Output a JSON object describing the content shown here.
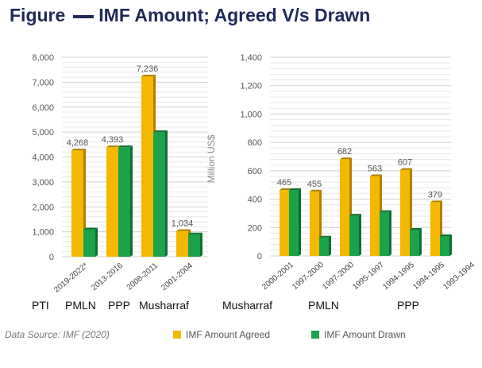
{
  "title": {
    "prefix": "Figure",
    "text": "IMF Amount; Agreed V/s Drawn"
  },
  "colors": {
    "agreed": "#f5b800",
    "drawn": "#1aa34a",
    "title": "#1f2a5a"
  },
  "chart_data": [
    {
      "type": "bar",
      "ylabel": "Million US$",
      "ylim": [
        0,
        8000
      ],
      "yticks": [
        "0",
        "1,000",
        "2,000",
        "3,000",
        "4,000",
        "5,000",
        "6,000",
        "7,000",
        "8,000"
      ],
      "grid": true,
      "categories": [
        "2019-2022*",
        "2013-2016",
        "2008-2011",
        "2001-2004"
      ],
      "series": [
        {
          "name": "IMF Amount Agreed",
          "values": [
            4268,
            4393,
            7236,
            1034
          ],
          "labels": [
            "4,268",
            "4,393",
            "7,236",
            "1,034"
          ]
        },
        {
          "name": "IMF Amount Drawn",
          "values": [
            1100,
            4393,
            5000,
            900
          ]
        }
      ]
    },
    {
      "type": "bar",
      "ylim": [
        0,
        1400
      ],
      "yticks": [
        "0",
        "200",
        "400",
        "600",
        "800",
        "1,000",
        "1,200",
        "1,400"
      ],
      "grid": true,
      "categories": [
        "2000-2001",
        "1997-2000",
        "1997-2000",
        "1995-1997",
        "1994-1995",
        "1994-1995",
        "1993-1994"
      ],
      "series": [
        {
          "name": "IMF Amount Agreed",
          "values": [
            465,
            455,
            682,
            563,
            607,
            379,
            0
          ],
          "labels": [
            "465",
            "455",
            "682",
            "563",
            "607",
            "379",
            ""
          ]
        },
        {
          "name": "IMF Amount Drawn",
          "values": [
            465,
            130,
            285,
            310,
            185,
            140,
            0
          ]
        }
      ]
    }
  ],
  "parties": [
    "PTI",
    "PMLN",
    "PPP",
    "Musharraf",
    "Musharraf",
    "PMLN",
    "PPP"
  ],
  "source": "Data Source: IMF (2020)",
  "legend": [
    "IMF Amount Agreed",
    "IMF Amount Drawn"
  ]
}
